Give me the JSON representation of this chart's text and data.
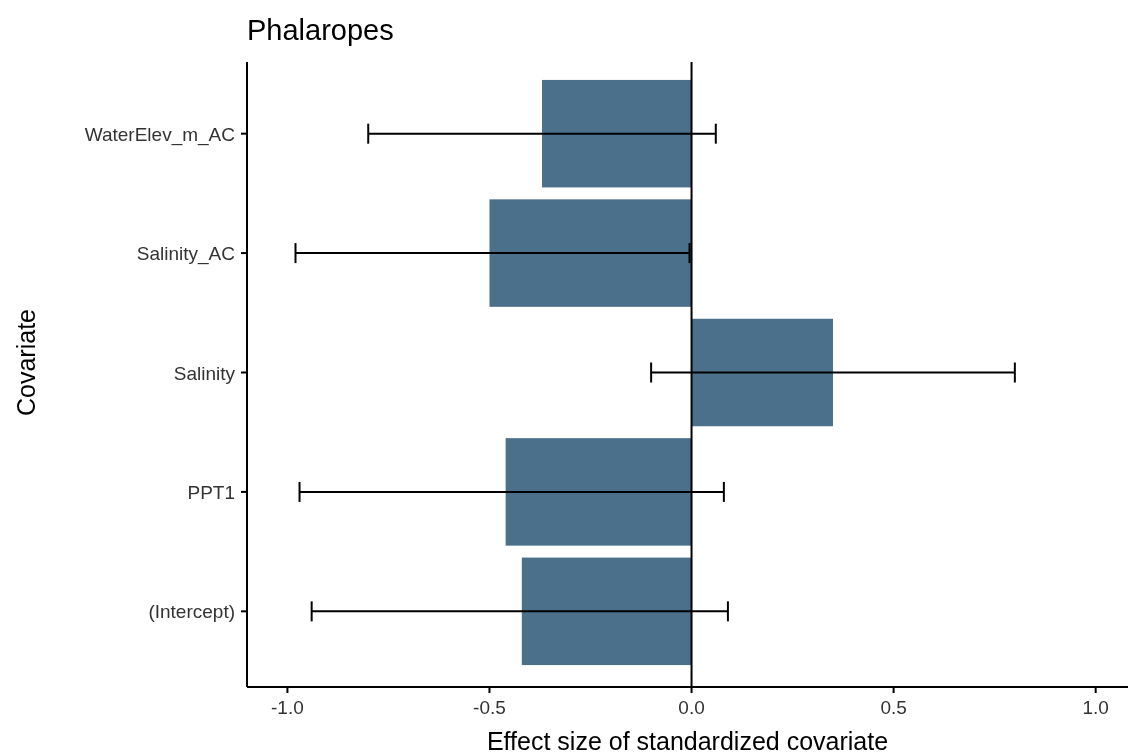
{
  "chart_data": {
    "type": "bar",
    "orientation": "horizontal",
    "title": "Phalaropes",
    "xlabel": "Effect size of standardized covariate",
    "ylabel": "Covariate",
    "categories": [
      "WaterElev_m_AC",
      "Salinity_AC",
      "Salinity",
      "PPT1",
      "(Intercept)"
    ],
    "values": [
      -0.37,
      -0.5,
      0.35,
      -0.46,
      -0.42
    ],
    "errors": [
      [
        -0.8,
        0.06
      ],
      [
        -0.98,
        -0.005
      ],
      [
        -0.1,
        0.8
      ],
      [
        -0.97,
        0.08
      ],
      [
        -0.94,
        0.09
      ]
    ],
    "color": "#4a708b",
    "xlim": [
      -1.1,
      1.08
    ],
    "xticks": [
      {
        "value": -1,
        "label": "-1.0"
      },
      {
        "value": -0.5,
        "label": "-0.5"
      },
      {
        "value": 0,
        "label": "0.0"
      },
      {
        "value": 0.5,
        "label": "0.5"
      },
      {
        "value": 1,
        "label": "1.0"
      }
    ],
    "ref_lines": [
      {
        "axis": "x",
        "value": 0,
        "label": null,
        "color": "#000000"
      }
    ],
    "grid": false
  }
}
